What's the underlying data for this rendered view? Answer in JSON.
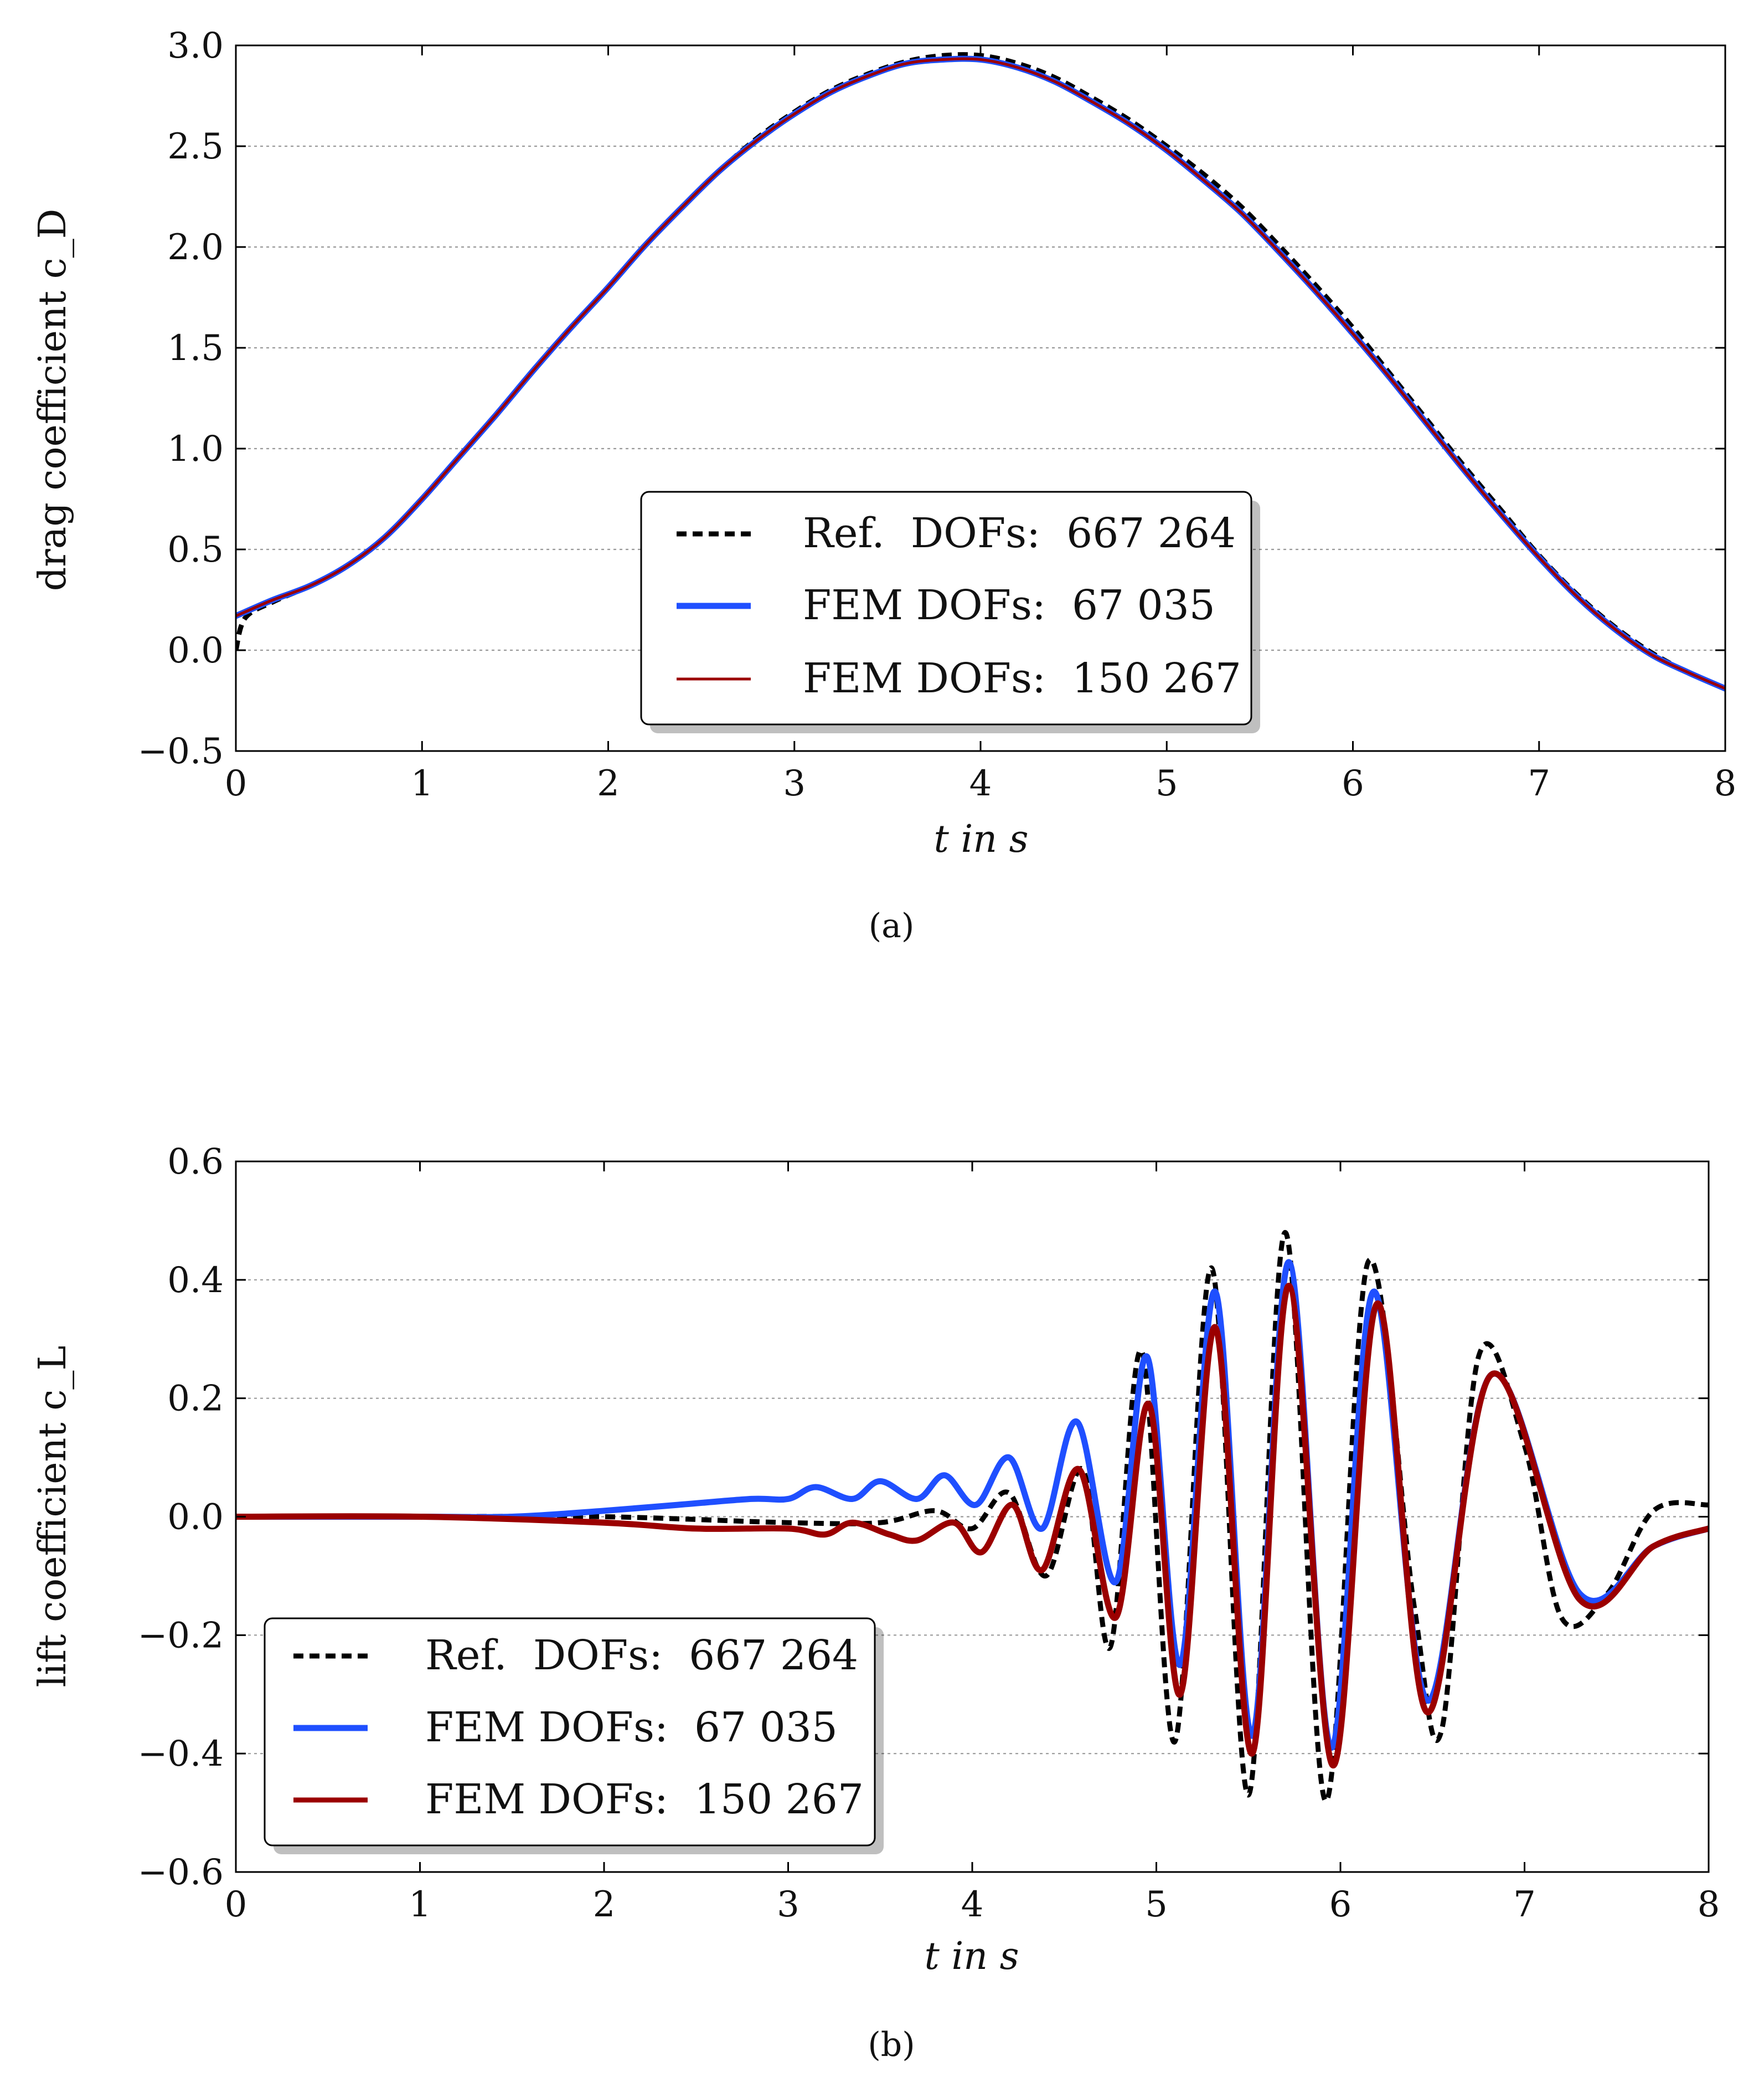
{
  "chart_data": [
    {
      "panel_caption": "(a)",
      "type": "line",
      "xlabel": "t in s",
      "ylabel": "drag coefficient c_D",
      "xlim": [
        0,
        8
      ],
      "ylim": [
        -0.5,
        3.0
      ],
      "xticks": [
        0,
        1,
        2,
        3,
        4,
        5,
        6,
        7,
        8
      ],
      "xtick_labels": [
        "0",
        "1",
        "2",
        "3",
        "4",
        "5",
        "6",
        "7",
        "8"
      ],
      "yticks": [
        -0.5,
        0.0,
        0.5,
        1.0,
        1.5,
        2.0,
        2.5,
        3.0
      ],
      "ytick_labels": [
        "−0.5",
        "0.0",
        "0.5",
        "1.0",
        "1.5",
        "2.0",
        "2.5",
        "3.0"
      ],
      "grid": "horizontal dotted",
      "legend_position": "bottom-center",
      "series": [
        {
          "name": "Ref.  DOFs:  667 264",
          "style": "dashed",
          "color": "#000000",
          "x": [
            0,
            0.05,
            0.2,
            0.4,
            0.6,
            0.8,
            1.0,
            1.2,
            1.4,
            1.6,
            1.8,
            2.0,
            2.2,
            2.4,
            2.6,
            2.8,
            3.0,
            3.2,
            3.4,
            3.6,
            3.8,
            4.0,
            4.2,
            4.4,
            4.6,
            4.8,
            5.0,
            5.2,
            5.4,
            5.6,
            5.8,
            6.0,
            6.2,
            6.4,
            6.6,
            6.8,
            7.0,
            7.2,
            7.4,
            7.6,
            7.8,
            8.0
          ],
          "y": [
            0.0,
            0.16,
            0.24,
            0.32,
            0.42,
            0.56,
            0.75,
            0.96,
            1.17,
            1.39,
            1.6,
            1.8,
            2.01,
            2.2,
            2.38,
            2.54,
            2.67,
            2.78,
            2.86,
            2.92,
            2.95,
            2.95,
            2.91,
            2.84,
            2.74,
            2.63,
            2.5,
            2.36,
            2.2,
            2.01,
            1.81,
            1.6,
            1.37,
            1.14,
            0.91,
            0.69,
            0.47,
            0.28,
            0.12,
            -0.01,
            -0.11,
            -0.19
          ]
        },
        {
          "name": "FEM DOFs:  67 035",
          "style": "solid-thick",
          "color": "#1f4fff",
          "x": [
            0,
            0.05,
            0.2,
            0.4,
            0.6,
            0.8,
            1.0,
            1.2,
            1.4,
            1.6,
            1.8,
            2.0,
            2.2,
            2.4,
            2.6,
            2.8,
            3.0,
            3.2,
            3.4,
            3.6,
            3.8,
            4.0,
            4.2,
            4.4,
            4.6,
            4.8,
            5.0,
            5.2,
            5.4,
            5.6,
            5.8,
            6.0,
            6.2,
            6.4,
            6.6,
            6.8,
            7.0,
            7.2,
            7.4,
            7.6,
            7.8,
            8.0
          ],
          "y": [
            0.17,
            0.19,
            0.25,
            0.32,
            0.42,
            0.56,
            0.75,
            0.96,
            1.17,
            1.39,
            1.6,
            1.8,
            2.01,
            2.2,
            2.38,
            2.53,
            2.66,
            2.77,
            2.85,
            2.91,
            2.93,
            2.93,
            2.89,
            2.82,
            2.72,
            2.61,
            2.48,
            2.33,
            2.17,
            1.98,
            1.78,
            1.57,
            1.35,
            1.12,
            0.89,
            0.67,
            0.46,
            0.27,
            0.11,
            -0.02,
            -0.11,
            -0.19
          ]
        },
        {
          "name": "FEM DOFs:  150 267",
          "style": "solid-thin",
          "color": "#9b0000",
          "x": [
            0,
            0.05,
            0.2,
            0.4,
            0.6,
            0.8,
            1.0,
            1.2,
            1.4,
            1.6,
            1.8,
            2.0,
            2.2,
            2.4,
            2.6,
            2.8,
            3.0,
            3.2,
            3.4,
            3.6,
            3.8,
            4.0,
            4.2,
            4.4,
            4.6,
            4.8,
            5.0,
            5.2,
            5.4,
            5.6,
            5.8,
            6.0,
            6.2,
            6.4,
            6.6,
            6.8,
            7.0,
            7.2,
            7.4,
            7.6,
            7.8,
            8.0
          ],
          "y": [
            0.17,
            0.19,
            0.25,
            0.32,
            0.42,
            0.56,
            0.75,
            0.96,
            1.17,
            1.39,
            1.6,
            1.8,
            2.01,
            2.2,
            2.38,
            2.53,
            2.66,
            2.77,
            2.85,
            2.91,
            2.93,
            2.93,
            2.89,
            2.82,
            2.72,
            2.61,
            2.48,
            2.33,
            2.17,
            1.98,
            1.78,
            1.57,
            1.35,
            1.12,
            0.89,
            0.67,
            0.46,
            0.27,
            0.11,
            -0.02,
            -0.11,
            -0.19
          ]
        }
      ]
    },
    {
      "panel_caption": "(b)",
      "type": "line",
      "xlabel": "t in s",
      "ylabel": "lift coefficient c_L",
      "xlim": [
        0,
        8
      ],
      "ylim": [
        -0.6,
        0.6
      ],
      "xticks": [
        0,
        1,
        2,
        3,
        4,
        5,
        6,
        7,
        8
      ],
      "xtick_labels": [
        "0",
        "1",
        "2",
        "3",
        "4",
        "5",
        "6",
        "7",
        "8"
      ],
      "yticks": [
        -0.6,
        -0.4,
        -0.2,
        0.0,
        0.2,
        0.4,
        0.6
      ],
      "ytick_labels": [
        "−0.6",
        "−0.4",
        "−0.2",
        "0.0",
        "0.2",
        "0.4",
        "0.6"
      ],
      "grid": "horizontal dotted",
      "legend_position": "bottom-left",
      "series": [
        {
          "name": "Ref.  DOFs:  667 264",
          "style": "dashed",
          "color": "#000000",
          "x": [
            0,
            1.0,
            2.0,
            3.0,
            3.5,
            3.8,
            4.0,
            4.2,
            4.4,
            4.6,
            4.75,
            4.92,
            5.1,
            5.3,
            5.5,
            5.7,
            5.92,
            6.15,
            6.4,
            6.55,
            6.75,
            7.0,
            7.2,
            7.45,
            7.7,
            8.0
          ],
          "y": [
            0.0,
            0.0,
            0.0,
            -0.01,
            -0.01,
            0.01,
            -0.02,
            0.04,
            -0.1,
            0.08,
            -0.22,
            0.28,
            -0.38,
            0.42,
            -0.47,
            0.48,
            -0.48,
            0.43,
            -0.15,
            -0.36,
            0.27,
            0.12,
            -0.17,
            -0.13,
            0.01,
            0.02
          ]
        },
        {
          "name": "FEM DOFs:  67 035",
          "style": "solid-thick",
          "color": "#1f4fff",
          "x": [
            0,
            1.0,
            1.5,
            2.0,
            2.4,
            2.8,
            3.0,
            3.15,
            3.35,
            3.5,
            3.7,
            3.85,
            4.02,
            4.2,
            4.38,
            4.57,
            4.78,
            4.95,
            5.13,
            5.32,
            5.52,
            5.72,
            5.95,
            6.18,
            6.47,
            6.82,
            7.3,
            7.7,
            8.0
          ],
          "y": [
            0.0,
            0.0,
            0.0,
            0.01,
            0.02,
            0.03,
            0.03,
            0.05,
            0.03,
            0.06,
            0.03,
            0.07,
            0.02,
            0.1,
            -0.02,
            0.16,
            -0.11,
            0.27,
            -0.25,
            0.38,
            -0.37,
            0.43,
            -0.39,
            0.38,
            -0.31,
            0.24,
            -0.13,
            -0.05,
            -0.02
          ]
        },
        {
          "name": "FEM DOFs:  150 267",
          "style": "solid-thick",
          "color": "#9b0000",
          "x": [
            0,
            1.0,
            2.0,
            2.5,
            3.0,
            3.2,
            3.35,
            3.55,
            3.7,
            3.9,
            4.05,
            4.22,
            4.38,
            4.58,
            4.78,
            4.96,
            5.13,
            5.32,
            5.52,
            5.72,
            5.96,
            6.2,
            6.47,
            6.82,
            7.3,
            7.7,
            8.0
          ],
          "y": [
            0.0,
            0.0,
            -0.01,
            -0.02,
            -0.02,
            -0.03,
            -0.01,
            -0.03,
            -0.04,
            -0.01,
            -0.06,
            0.02,
            -0.09,
            0.08,
            -0.17,
            0.19,
            -0.3,
            0.32,
            -0.4,
            0.39,
            -0.42,
            0.36,
            -0.33,
            0.24,
            -0.14,
            -0.05,
            -0.02
          ]
        }
      ]
    }
  ]
}
